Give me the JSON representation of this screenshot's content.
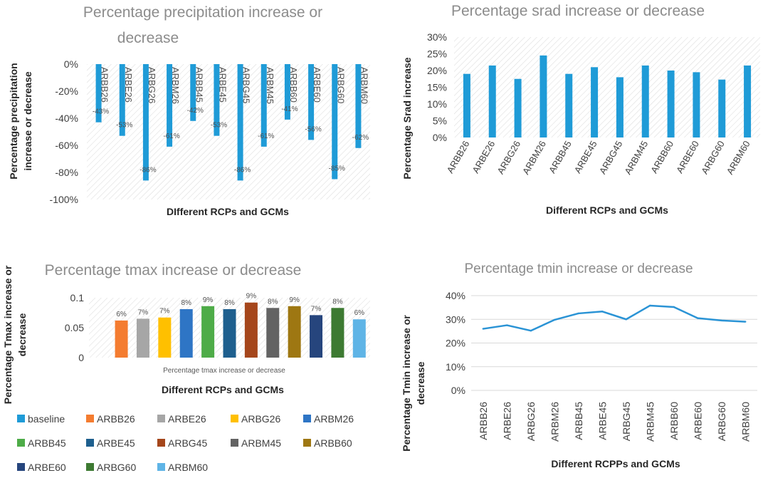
{
  "charts": [
    {
      "id": "precip",
      "type": "bar",
      "title_lines": [
        "Percentage precipitation increase or",
        "decrease"
      ],
      "xlabel": "DIfferent RCPs and GCMs",
      "ylabel_lines": [
        "Percentage precipitation",
        "increase or decrease"
      ],
      "y_ticks": [
        "0%",
        "-20%",
        "-40%",
        "-60%",
        "-80%",
        "-100%"
      ],
      "ylim": [
        -100,
        0
      ],
      "categories": [
        "ARBB26",
        "ARBE26",
        "ARBG26",
        "ARBM26",
        "ARBB45",
        "ARBE45",
        "ARBG45",
        "ARBM45",
        "ARBB60",
        "ARBE60",
        "ARBG60",
        "ARBM60"
      ],
      "values": [
        -43,
        -53,
        -86,
        -61,
        -42,
        -53,
        -86,
        -61,
        -41,
        -56,
        -85,
        -62
      ],
      "data_labels": [
        "-43%",
        "-53%",
        "-86%",
        "-61%",
        "-42%",
        "-53%",
        "-86%",
        "-61%",
        "-41%",
        "-56%",
        "-85%",
        "-62%"
      ],
      "color": "#1f9bd7"
    },
    {
      "id": "srad",
      "type": "bar",
      "title_lines": [
        "Percentage srad increase or decrease"
      ],
      "xlabel": "Different RCPs and GCMs",
      "ylabel_lines": [
        "Percentage Srad increase"
      ],
      "y_ticks": [
        "30%",
        "25%",
        "20%",
        "15%",
        "10%",
        "5%",
        "0%"
      ],
      "ylim": [
        0,
        30
      ],
      "categories": [
        "ARBB26",
        "ARBE26",
        "ARBG26",
        "ARBM26",
        "ARBB45",
        "ARBE45",
        "ARBG45",
        "ARBM45",
        "ARBB60",
        "ARBE60",
        "ARBG60",
        "ARBM60"
      ],
      "values": [
        19,
        21.5,
        17.5,
        24.5,
        19,
        21,
        18,
        21.5,
        20,
        19.5,
        17.3,
        21.5
      ],
      "color": "#1f9bd7"
    },
    {
      "id": "tmax",
      "type": "bar",
      "title_lines": [
        "Percentage tmax increase or decrease"
      ],
      "xlabel": "Different RCPs and GCMs",
      "inner_xlabel": "Percentage tmax increase or decrease",
      "ylabel_lines": [
        "Percentage Tmax increase or",
        "decrease"
      ],
      "y_ticks": [
        "0.1",
        "0.05",
        "0"
      ],
      "ylim": [
        0,
        0.1
      ],
      "categories": [
        "baseline",
        "ARBB26",
        "ARBE26",
        "ARBG26",
        "ARBM26",
        "ARBB45",
        "ARBE45",
        "ARBG45",
        "ARBM45",
        "ARBB60",
        "ARBE60",
        "ARBG60",
        "ARBM60"
      ],
      "values": [
        0,
        0.062,
        0.065,
        0.067,
        0.081,
        0.086,
        0.081,
        0.092,
        0.083,
        0.086,
        0.071,
        0.083,
        0.064
      ],
      "data_labels": [
        "",
        "6%",
        "7%",
        "7%",
        "8%",
        "9%",
        "8%",
        "9%",
        "8%",
        "9%",
        "7%",
        "8%",
        "6%"
      ],
      "colors": [
        "#1f9bd7",
        "#f47c30",
        "#a6a6a6",
        "#ffc000",
        "#2e75c5",
        "#4eac48",
        "#1e5f8e",
        "#a5461b",
        "#636363",
        "#9e7712",
        "#26457d",
        "#3d7a32",
        "#5fb4e6"
      ],
      "legend": [
        "baseline",
        "ARBB26",
        "ARBE26",
        "ARBG26",
        "ARBM26",
        "ARBB45",
        "ARBE45",
        "ARBG45",
        "ARBM45",
        "ARBB60",
        "ARBE60",
        "ARBG60",
        "ARBM60"
      ]
    },
    {
      "id": "tmin",
      "type": "line",
      "title_lines": [
        "Percentage tmin increase or decrease"
      ],
      "xlabel": "Different RCPPs and GCMs",
      "ylabel_lines": [
        "Percentage Tmin increase or",
        "decrease"
      ],
      "y_ticks": [
        "40%",
        "30%",
        "20%",
        "10%",
        "0%"
      ],
      "ylim": [
        0,
        40
      ],
      "categories": [
        "ARBB26",
        "ARBE26",
        "ARBG26",
        "ARBM26",
        "ARBB45",
        "ARBE45",
        "ARBG45",
        "ARBM45",
        "ARBB60",
        "ARBE60",
        "ARBG60",
        "ARBM60"
      ],
      "values": [
        26,
        27.5,
        25.2,
        29.8,
        32.5,
        33.3,
        30,
        35.8,
        35.2,
        30.5,
        29.5,
        29
      ],
      "color": "#2a93d5"
    }
  ]
}
